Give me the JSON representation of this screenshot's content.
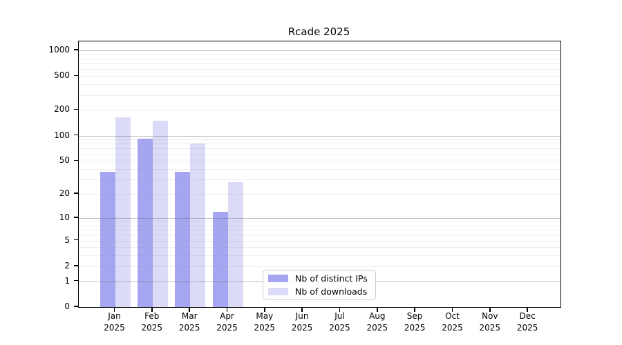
{
  "chart_data": {
    "type": "bar",
    "title": "Rcade 2025",
    "scale": "log1p",
    "categories": [
      "Jan",
      "Feb",
      "Mar",
      "Apr",
      "May",
      "Jun",
      "Jul",
      "Aug",
      "Sep",
      "Oct",
      "Nov",
      "Dec"
    ],
    "category_year": "2025",
    "series": [
      {
        "name": "Nb of distinct IPs",
        "color": "#a5a5f1",
        "values": [
          37,
          92,
          37,
          12,
          null,
          null,
          null,
          null,
          null,
          null,
          null,
          null
        ]
      },
      {
        "name": "Nb of downloads",
        "color": "#dbdbf7",
        "values": [
          165,
          150,
          80,
          28,
          null,
          null,
          null,
          null,
          null,
          null,
          null,
          null
        ]
      }
    ],
    "y_ticks": [
      0,
      1,
      2,
      5,
      10,
      20,
      50,
      100,
      200,
      500,
      1000
    ],
    "ylim": [
      0,
      1000
    ],
    "grid": true,
    "legend_position": "lower-center-left"
  }
}
